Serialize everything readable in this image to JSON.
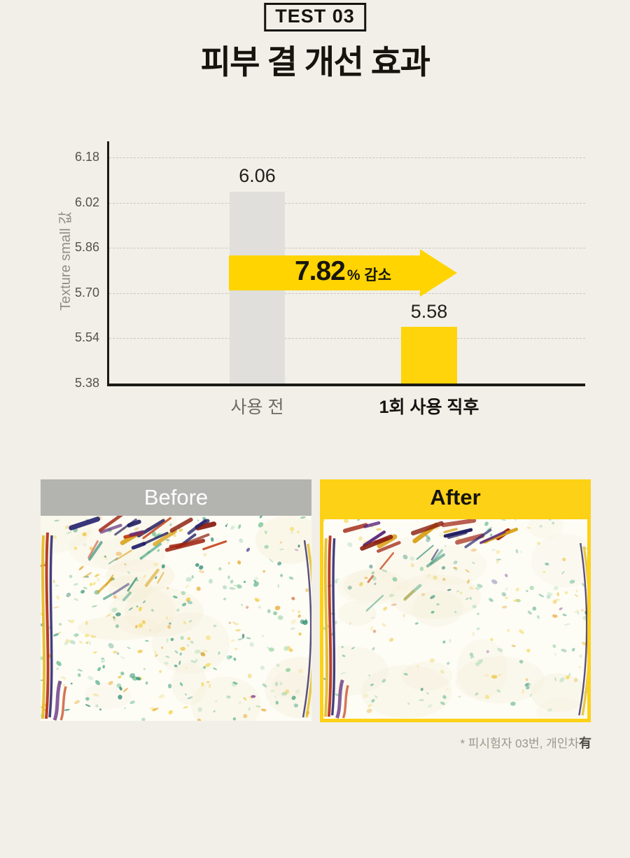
{
  "page": {
    "badge": "TEST 03",
    "title": "피부 결 개선 효과",
    "footnote_prefix": "* 피시험자 03번, 개인차",
    "footnote_emphasis": "有"
  },
  "chart_data": {
    "type": "bar",
    "title": "",
    "xlabel": "",
    "ylabel": "Texture small 값",
    "categories": [
      "사용 전",
      "1회 사용 직후"
    ],
    "category_styles": [
      "muted",
      "bold"
    ],
    "values": [
      6.06,
      5.58
    ],
    "value_labels": [
      "6.06",
      "5.58"
    ],
    "bar_colors": [
      "#e0dfdb",
      "#ffd40b"
    ],
    "yticks": [
      6.18,
      6.02,
      5.86,
      5.7,
      5.54,
      5.38
    ],
    "ytick_labels": [
      "6.18",
      "6.02",
      "5.86",
      "5.70",
      "5.54",
      "5.38"
    ],
    "ylim": [
      5.38,
      6.22
    ],
    "grid": "horizontal-dashed",
    "legend": "none",
    "annotation": {
      "value": "7.82",
      "suffix": "% 감소",
      "direction": "right",
      "arrow_color": "#ffd400"
    }
  },
  "comparison": {
    "before_label": "Before",
    "after_label": "After",
    "before_header_color": "#b3b3b0",
    "after_header_color": "#fdd116"
  }
}
